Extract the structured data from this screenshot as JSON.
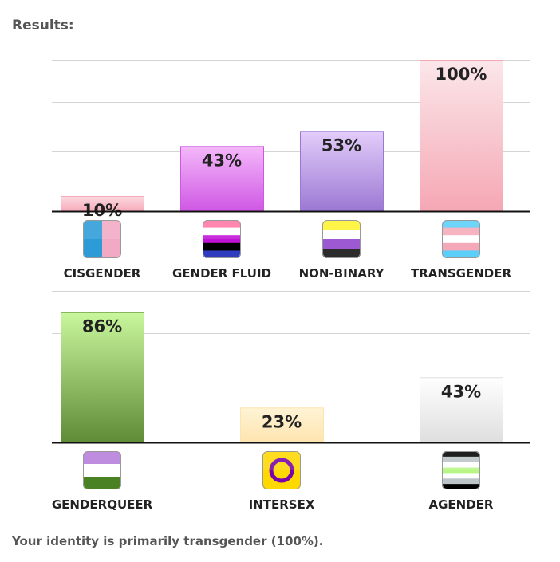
{
  "heading": "Results:",
  "summary": "Your identity is primarily transgender (100%).",
  "chart_data": [
    {
      "type": "bar",
      "categories": [
        "CISGENDER",
        "GENDER FLUID",
        "NON-BINARY",
        "TRANSGENDER"
      ],
      "values": [
        10,
        43,
        53,
        100
      ],
      "value_labels": [
        "10%",
        "43%",
        "53%",
        "100%"
      ],
      "ylim": [
        0,
        100
      ],
      "grid": true,
      "bar_colors": [
        [
          "#fbd9df",
          "#f6a9b8"
        ],
        [
          "#f4b8fa",
          "#cf57e4"
        ],
        [
          "#e3cdfa",
          "#9b78d3"
        ],
        [
          "#fbe7ea",
          "#f5a7b4"
        ]
      ],
      "icons": [
        "cisgender-flag-icon",
        "genderfluid-flag-icon",
        "nonbinary-flag-icon",
        "transgender-flag-icon"
      ]
    },
    {
      "type": "bar",
      "categories": [
        "GENDERQUEER",
        "INTERSEX",
        "AGENDER"
      ],
      "values": [
        86,
        23,
        43
      ],
      "value_labels": [
        "86%",
        "23%",
        "43%"
      ],
      "ylim": [
        0,
        100
      ],
      "grid": true,
      "bar_colors": [
        [
          "#c9f79d",
          "#5f8a36"
        ],
        [
          "#fff4d6",
          "#fde4ae"
        ],
        [
          "#ffffff",
          "#dedede"
        ]
      ],
      "icons": [
        "genderqueer-flag-icon",
        "intersex-flag-icon",
        "agender-flag-icon"
      ]
    }
  ]
}
